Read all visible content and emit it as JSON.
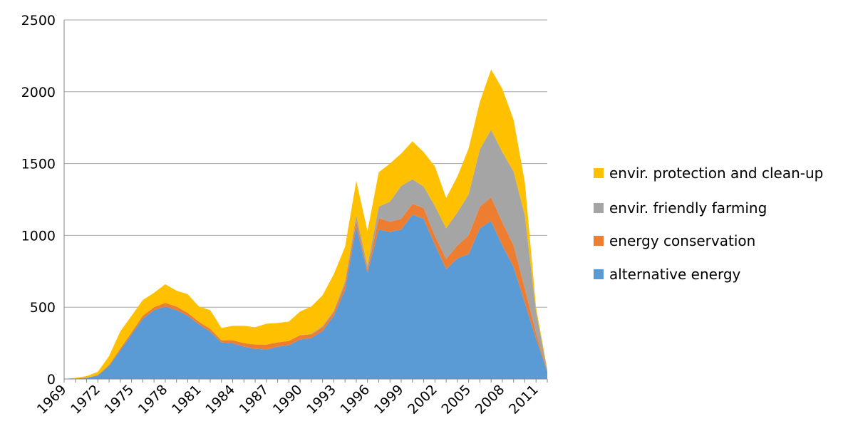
{
  "chart_data": {
    "type": "area",
    "stacked": true,
    "title": "",
    "xlabel": "",
    "ylabel": "",
    "ylim": [
      0,
      2500
    ],
    "yticks": [
      0,
      500,
      1000,
      1500,
      2000,
      2500
    ],
    "xlim": [
      1969,
      2012
    ],
    "xticks": [
      1969,
      1972,
      1975,
      1978,
      1981,
      1984,
      1987,
      1990,
      1993,
      1996,
      1999,
      2002,
      2005,
      2008,
      2011
    ],
    "grid": "horizontal",
    "legend_position": "right",
    "x": [
      1969,
      1970,
      1971,
      1972,
      1973,
      1974,
      1975,
      1976,
      1977,
      1978,
      1979,
      1980,
      1981,
      1982,
      1983,
      1984,
      1985,
      1986,
      1987,
      1988,
      1989,
      1990,
      1991,
      1992,
      1993,
      1994,
      1995,
      1996,
      1997,
      1998,
      1999,
      2000,
      2001,
      2002,
      2003,
      2004,
      2005,
      2006,
      2007,
      2008,
      2009,
      2010,
      2011,
      2012
    ],
    "series": [
      {
        "name": "alternative energy",
        "color": "#5b9bd5",
        "values": [
          0,
          3,
          8,
          25,
          90,
          200,
          310,
          420,
          480,
          505,
          480,
          440,
          380,
          330,
          255,
          250,
          225,
          210,
          205,
          225,
          235,
          275,
          285,
          335,
          440,
          620,
          1060,
          740,
          1040,
          1025,
          1040,
          1145,
          1115,
          935,
          765,
          840,
          870,
          1050,
          1100,
          930,
          780,
          530,
          280,
          50
        ]
      },
      {
        "name": "energy conservation",
        "color": "#ed7d31",
        "values": [
          0,
          0,
          0,
          3,
          8,
          12,
          15,
          20,
          20,
          25,
          25,
          20,
          18,
          20,
          15,
          20,
          25,
          30,
          35,
          30,
          30,
          30,
          25,
          25,
          25,
          40,
          40,
          20,
          80,
          70,
          75,
          75,
          75,
          60,
          70,
          90,
          130,
          150,
          165,
          160,
          150,
          100,
          40,
          5
        ]
      },
      {
        "name": "envir. friendly farming",
        "color": "#a5a5a5",
        "values": [
          0,
          0,
          0,
          0,
          0,
          0,
          0,
          0,
          0,
          0,
          0,
          0,
          0,
          0,
          0,
          0,
          0,
          0,
          0,
          0,
          0,
          0,
          5,
          8,
          10,
          20,
          40,
          30,
          80,
          140,
          230,
          170,
          150,
          210,
          215,
          230,
          285,
          400,
          470,
          490,
          515,
          510,
          150,
          5
        ]
      },
      {
        "name": "envir. protection and clean-up",
        "color": "#ffc000",
        "values": [
          0,
          5,
          12,
          22,
          62,
          120,
          115,
          110,
          100,
          130,
          110,
          130,
          107,
          130,
          85,
          100,
          120,
          120,
          145,
          135,
          135,
          165,
          190,
          215,
          255,
          240,
          240,
          240,
          240,
          265,
          225,
          265,
          240,
          275,
          210,
          250,
          320,
          330,
          420,
          440,
          360,
          230,
          30,
          10
        ]
      }
    ]
  }
}
